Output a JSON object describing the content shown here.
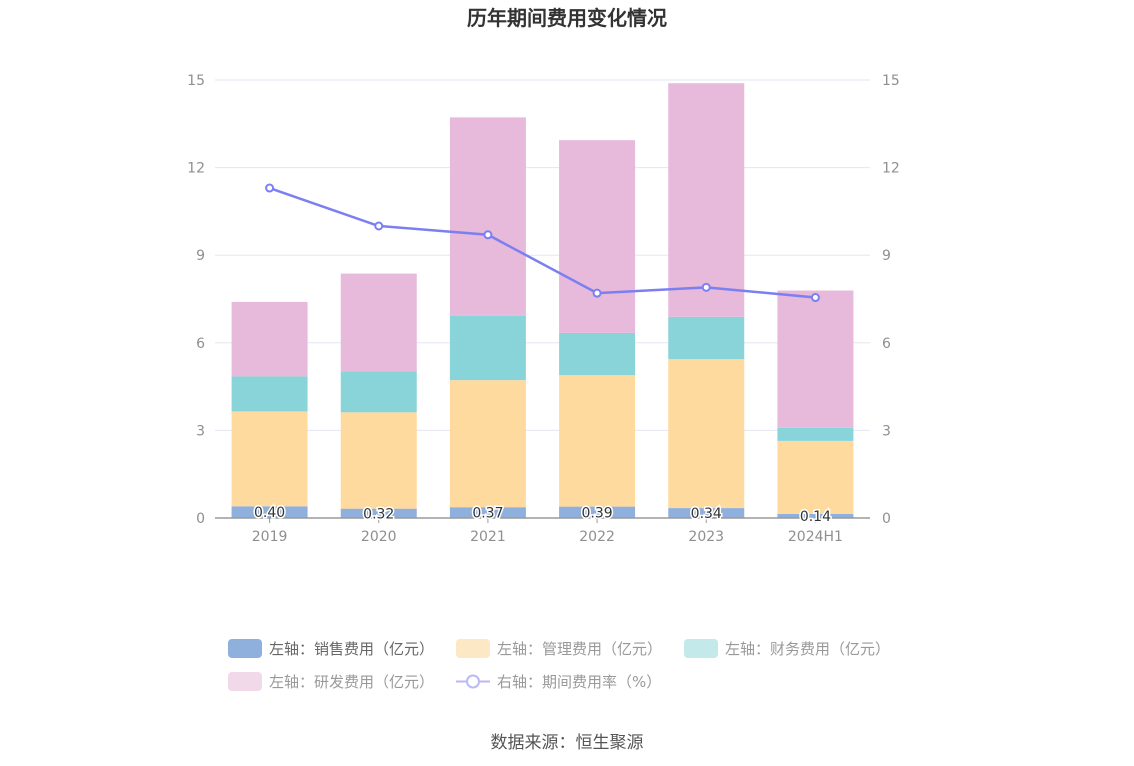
{
  "title": "历年期间费用变化情况",
  "source": "数据来源：恒生聚源",
  "chart_data": {
    "type": "bar",
    "stacked": true,
    "categories": [
      "2019",
      "2020",
      "2021",
      "2022",
      "2023",
      "2024H1"
    ],
    "y_left": {
      "min": 0,
      "max": 15,
      "ticks": [
        "0",
        "3",
        "6",
        "9",
        "12",
        "15"
      ]
    },
    "y_right": {
      "min": 0,
      "max": 15,
      "ticks": [
        "0",
        "3",
        "6",
        "9",
        "12",
        "15"
      ]
    },
    "grid": true,
    "legend_position": "bottom",
    "series": [
      {
        "name": "左轴：销售费用（亿元）",
        "axis": "left",
        "type": "bar",
        "color": "#8fafdc",
        "values": [
          0.4,
          0.32,
          0.37,
          0.39,
          0.34,
          0.14
        ],
        "labels": [
          "0.40",
          "0.32",
          "0.37",
          "0.39",
          "0.34",
          "0.14"
        ]
      },
      {
        "name": "左轴：管理费用（亿元）",
        "axis": "left",
        "type": "bar",
        "color": "#ffda9e",
        "values": [
          3.25,
          3.3,
          4.35,
          4.5,
          5.1,
          2.5
        ]
      },
      {
        "name": "左轴：财务费用（亿元）",
        "axis": "left",
        "type": "bar",
        "color": "#88d4d9",
        "values": [
          1.2,
          1.4,
          2.2,
          1.45,
          1.45,
          0.45
        ]
      },
      {
        "name": "左轴：研发费用（亿元）",
        "axis": "left",
        "type": "bar",
        "color": "#e7b9da",
        "values": [
          2.55,
          3.35,
          6.8,
          6.6,
          8.0,
          4.7
        ]
      },
      {
        "name": "右轴：期间费用率（%）",
        "axis": "right",
        "type": "line",
        "color": "#7b7ff0",
        "values": [
          11.3,
          10.0,
          9.7,
          7.7,
          7.9,
          7.55
        ]
      }
    ]
  }
}
